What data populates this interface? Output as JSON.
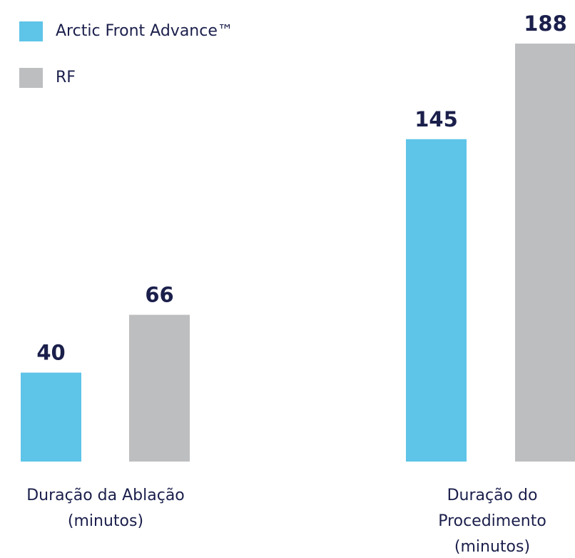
{
  "chart_data": {
    "type": "bar",
    "categories": [
      "Duração da Ablação (minutos)",
      "Duração do Procedimento (minutos)"
    ],
    "series": [
      {
        "name": "Arctic Front Advance™",
        "color": "#5ec4e8",
        "values": [
          40,
          145
        ]
      },
      {
        "name": "RF",
        "color": "#bcbec0",
        "values": [
          66,
          188
        ]
      }
    ],
    "legend": "top-left"
  }
}
